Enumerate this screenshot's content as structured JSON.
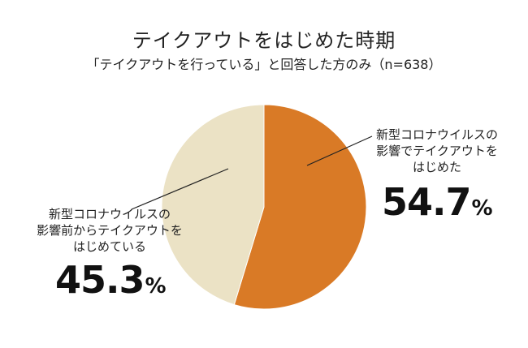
{
  "chart_data": {
    "type": "pie",
    "title": "テイクアウトをはじめた時期",
    "subtitle": "「テイクアウトを行っている」と回答した方のみ（n=638）",
    "slices": [
      {
        "label_lines": [
          "新型コロナウイルスの",
          "影響でテイクアウトを",
          "はじめた"
        ],
        "value": 54.7,
        "value_text": "54.7",
        "percent_sign": "%",
        "color": "#d97a26"
      },
      {
        "label_lines": [
          "新型コロナウイルスの",
          "影響前からテイクアウトを",
          "はじめている"
        ],
        "value": 45.3,
        "value_text": "45.3",
        "percent_sign": "%",
        "color": "#ebe2c5"
      }
    ]
  }
}
